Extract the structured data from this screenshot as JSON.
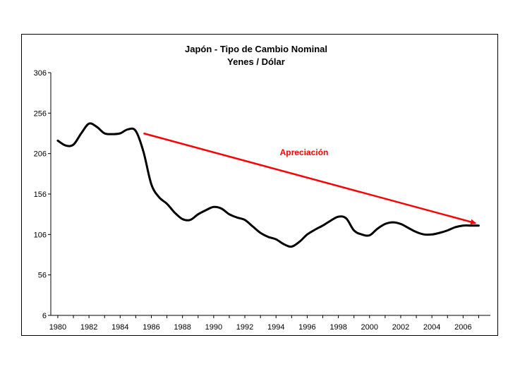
{
  "chart_data": {
    "type": "line",
    "title": "Japón - Tipo de Cambio Nominal",
    "subtitle": "Yenes / Dólar",
    "xlabel": "",
    "ylabel": "",
    "xlim": [
      1979.55,
      2007.75
    ],
    "ylim": [
      6,
      306
    ],
    "y_ticks": [
      6,
      56,
      106,
      156,
      206,
      256,
      306
    ],
    "x_ticks": [
      1980,
      1982,
      1984,
      1986,
      1988,
      1990,
      1992,
      1994,
      1996,
      1998,
      2000,
      2002,
      2004,
      2006
    ],
    "grid": false,
    "series": [
      {
        "name": "Yenes / Dólar",
        "color": "#000000",
        "x": [
          1980,
          1980.5,
          1981,
          1981.5,
          1982,
          1982.5,
          1983,
          1983.5,
          1984,
          1984.5,
          1985,
          1985.5,
          1986,
          1986.5,
          1987,
          1987.5,
          1988,
          1988.5,
          1989,
          1989.5,
          1990,
          1990.5,
          1991,
          1991.5,
          1992,
          1992.5,
          1993,
          1993.5,
          1994,
          1994.5,
          1995,
          1995.5,
          1996,
          1996.5,
          1997,
          1997.5,
          1998,
          1998.5,
          1999,
          1999.5,
          2000,
          2000.5,
          2001,
          2001.5,
          2002,
          2002.5,
          2003,
          2003.5,
          2004,
          2004.5,
          2005,
          2005.5,
          2006,
          2006.5,
          2007
        ],
        "values": [
          222,
          216,
          217,
          231,
          243,
          239,
          231,
          230,
          231,
          236,
          234,
          208,
          168,
          152,
          144,
          133,
          125,
          124,
          131,
          136,
          140,
          138,
          131,
          127,
          124,
          116,
          108,
          103,
          100,
          94,
          91,
          97,
          106,
          112,
          117,
          123,
          128,
          126,
          111,
          106,
          105,
          113,
          119,
          121,
          119,
          114,
          109,
          106,
          106,
          108,
          111,
          115,
          117,
          117,
          117
        ]
      }
    ],
    "annotations": [
      {
        "text": "Apreciación",
        "color": "#ff0000",
        "arrow_from": [
          1985.5,
          231
        ],
        "arrow_to": [
          2006.8,
          120
        ],
        "label_at": [
          1995.8,
          204
        ]
      }
    ]
  }
}
